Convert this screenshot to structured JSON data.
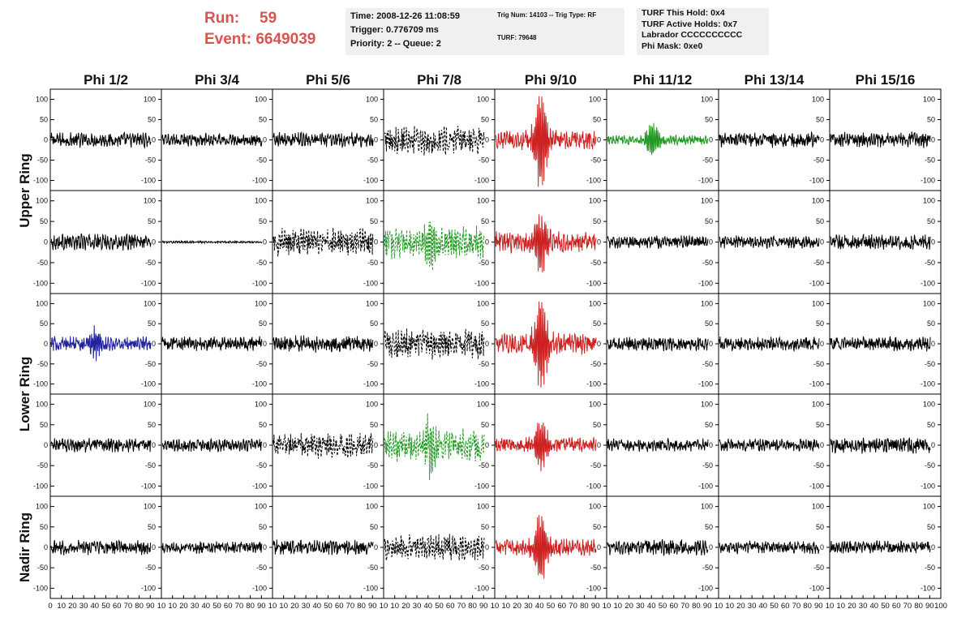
{
  "header": {
    "run_label": "Run:",
    "run_value": "59",
    "event_label": "Event:",
    "event_value": "6649039"
  },
  "info": {
    "time": "Time: 2008-12-26 11:08:59",
    "trigger": "Trigger: 0.776709 ms",
    "priority": "Priority: 2 -- Queue: 2",
    "trig_num": "Trig Num: 14103 -- Trig Type: RF",
    "turf": "TURF: 79648",
    "turf_hold": "TURF This Hold: 0x4",
    "turf_active": "TURF Active Holds: 0x7",
    "labrador": "Labrador CCCCCCCCCC",
    "phi_mask": "Phi Mask: 0xe0"
  },
  "chart_data": {
    "type": "line",
    "description_grid": "5 rows x 8 columns of waveform panels",
    "columns": [
      "Phi 1/2",
      "Phi 3/4",
      "Phi 5/6",
      "Phi 7/8",
      "Phi 9/10",
      "Phi 11/12",
      "Phi 13/14",
      "Phi 15/16"
    ],
    "row_groups": [
      "Upper Ring",
      "Lower Ring",
      "Nadir Ring"
    ],
    "ylim": [
      -125,
      125
    ],
    "yticks": [
      100,
      50,
      0,
      -50,
      -100
    ],
    "xlim": [
      0,
      100
    ],
    "xticks": [
      0,
      10,
      20,
      30,
      40,
      50,
      60,
      70,
      80,
      90,
      100
    ],
    "xtick_labels_first": [
      "0",
      "10",
      "20",
      "30",
      "40",
      "50",
      "60",
      "70",
      "80",
      "90",
      "10"
    ],
    "xtick_labels_mid": [
      "10",
      "20",
      "30",
      "40",
      "50",
      "60",
      "70",
      "80",
      "90",
      "10"
    ],
    "xtick_labels_last": [
      "10",
      "20",
      "30",
      "40",
      "50",
      "60",
      "70",
      "80",
      "90",
      "100"
    ],
    "colors": {
      "default": "#000000",
      "red": "#cc2222",
      "green": "#229922",
      "blue": "#22229c"
    },
    "panels": [
      [
        {
          "color": "default",
          "dashed": false,
          "amp": 14,
          "burst": 0
        },
        {
          "color": "default",
          "dashed": false,
          "amp": 12,
          "burst": 0
        },
        {
          "color": "default",
          "dashed": false,
          "amp": 14,
          "burst": 0
        },
        {
          "color": "default",
          "dashed": true,
          "amp": 28,
          "burst": 0
        },
        {
          "color": "red",
          "dashed": false,
          "amp": 18,
          "burst": 110
        },
        {
          "color": "green",
          "dashed": false,
          "amp": 9,
          "burst": 40
        },
        {
          "color": "default",
          "dashed": false,
          "amp": 14,
          "burst": 0
        },
        {
          "color": "default",
          "dashed": false,
          "amp": 15,
          "burst": 0
        }
      ],
      [
        {
          "color": "default",
          "dashed": false,
          "amp": 15,
          "burst": 0
        },
        {
          "color": "default",
          "dashed": false,
          "amp": 2,
          "burst": 0
        },
        {
          "color": "default",
          "dashed": true,
          "amp": 26,
          "burst": 0
        },
        {
          "color": "green",
          "dashed": true,
          "amp": 30,
          "burst": 55
        },
        {
          "color": "red",
          "dashed": false,
          "amp": 20,
          "burst": 65
        },
        {
          "color": "default",
          "dashed": false,
          "amp": 12,
          "burst": 0
        },
        {
          "color": "default",
          "dashed": false,
          "amp": 12,
          "burst": 0
        },
        {
          "color": "default",
          "dashed": false,
          "amp": 14,
          "burst": 0
        }
      ],
      [
        {
          "color": "blue",
          "dashed": false,
          "amp": 14,
          "burst": 35
        },
        {
          "color": "default",
          "dashed": false,
          "amp": 14,
          "burst": 0
        },
        {
          "color": "default",
          "dashed": false,
          "amp": 16,
          "burst": 0
        },
        {
          "color": "default",
          "dashed": true,
          "amp": 28,
          "burst": 0
        },
        {
          "color": "red",
          "dashed": false,
          "amp": 20,
          "burst": 110
        },
        {
          "color": "default",
          "dashed": false,
          "amp": 13,
          "burst": 0
        },
        {
          "color": "default",
          "dashed": false,
          "amp": 13,
          "burst": 0
        },
        {
          "color": "default",
          "dashed": false,
          "amp": 14,
          "burst": 0
        }
      ],
      [
        {
          "color": "default",
          "dashed": false,
          "amp": 13,
          "burst": 0
        },
        {
          "color": "default",
          "dashed": false,
          "amp": 12,
          "burst": 0
        },
        {
          "color": "default",
          "dashed": true,
          "amp": 24,
          "burst": 0
        },
        {
          "color": "green",
          "dashed": true,
          "amp": 30,
          "burst": 55
        },
        {
          "color": "red",
          "dashed": false,
          "amp": 14,
          "burst": 55
        },
        {
          "color": "default",
          "dashed": false,
          "amp": 12,
          "burst": 0
        },
        {
          "color": "default",
          "dashed": false,
          "amp": 12,
          "burst": 0
        },
        {
          "color": "default",
          "dashed": false,
          "amp": 15,
          "burst": 0
        }
      ],
      [
        {
          "color": "default",
          "dashed": false,
          "amp": 14,
          "burst": 0
        },
        {
          "color": "default",
          "dashed": false,
          "amp": 11,
          "burst": 0
        },
        {
          "color": "default",
          "dashed": false,
          "amp": 14,
          "burst": 0
        },
        {
          "color": "default",
          "dashed": true,
          "amp": 24,
          "burst": 0
        },
        {
          "color": "red",
          "dashed": false,
          "amp": 16,
          "burst": 85
        },
        {
          "color": "default",
          "dashed": false,
          "amp": 15,
          "burst": 0
        },
        {
          "color": "default",
          "dashed": false,
          "amp": 12,
          "burst": 0
        },
        {
          "color": "default",
          "dashed": false,
          "amp": 12,
          "burst": 0
        }
      ]
    ]
  }
}
